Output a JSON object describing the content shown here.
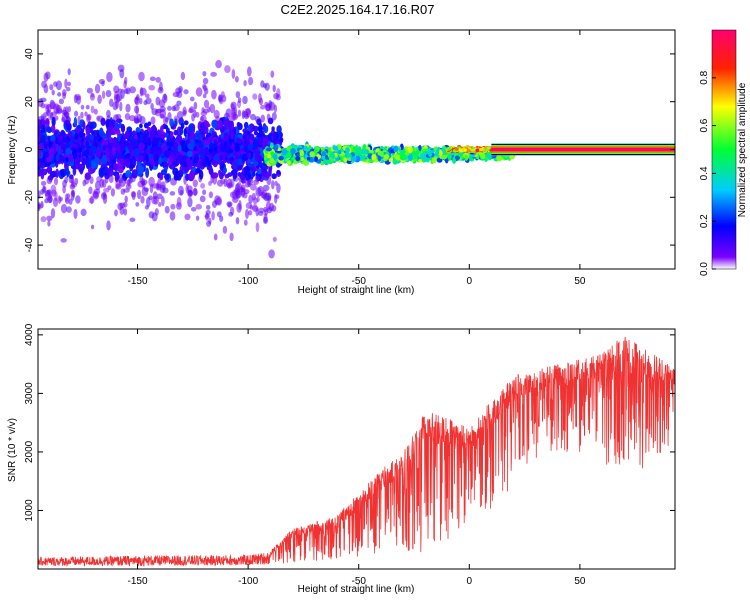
{
  "title": "C2E2.2025.164.17.16.R07",
  "colors": {
    "background": "#ffffff",
    "frame": "#000000",
    "snr_line": "#f03232",
    "spectrum_low": "#7a00ff",
    "spectrum_high": "#ff0060"
  },
  "chart_data": [
    {
      "type": "heatmap",
      "xlabel": "Height of straight line (km)",
      "ylabel": "Frequency (Hz)",
      "xlim": [
        -195,
        93
      ],
      "ylim": [
        -50,
        50
      ],
      "xticks": [
        -150,
        -100,
        -50,
        0,
        50
      ],
      "yticks": [
        -40,
        -20,
        0,
        20,
        40
      ],
      "grid": false,
      "colorbar": {
        "label": "Normalized spectral amplitude",
        "range": [
          0,
          1
        ],
        "ticks": [
          "0.0",
          "0.2",
          "0.4",
          "0.6",
          "0.8"
        ],
        "colormap": "rainbow"
      },
      "ridge": {
        "frequency_hz": 0,
        "strong_from_km": 10,
        "to_km": 93,
        "description_values": [
          {
            "x": -90,
            "y": 0,
            "amplitude": 0.45
          },
          {
            "x": -50,
            "y": -2,
            "amplitude": 0.55
          },
          {
            "x": -20,
            "y": -1,
            "amplitude": 0.6
          },
          {
            "x": 0,
            "y": 1,
            "amplitude": 0.85
          },
          {
            "x": 10,
            "y": 0,
            "amplitude": 1.0
          },
          {
            "x": 90,
            "y": 0,
            "amplitude": 1.0
          }
        ]
      }
    },
    {
      "type": "line",
      "xlabel": "Height of straight line (km)",
      "ylabel": "SNR (10 * v/v)",
      "xlim": [
        -195,
        93
      ],
      "ylim": [
        0,
        4100
      ],
      "xticks": [
        -150,
        -100,
        -50,
        0,
        50
      ],
      "yticks": [
        1000,
        2000,
        3000,
        4000
      ],
      "grid": false,
      "series": [
        {
          "color": "#f03232",
          "envelope": [
            {
              "x": -195,
              "low": 50,
              "high": 200
            },
            {
              "x": -150,
              "low": 50,
              "high": 230
            },
            {
              "x": -100,
              "low": 60,
              "high": 240
            },
            {
              "x": -90,
              "low": 80,
              "high": 300
            },
            {
              "x": -80,
              "low": 100,
              "high": 700
            },
            {
              "x": -60,
              "low": 150,
              "high": 900
            },
            {
              "x": -50,
              "low": 200,
              "high": 1300
            },
            {
              "x": -40,
              "low": 200,
              "high": 1700
            },
            {
              "x": -30,
              "low": 250,
              "high": 2000
            },
            {
              "x": -20,
              "low": 300,
              "high": 2700
            },
            {
              "x": -10,
              "low": 500,
              "high": 2600
            },
            {
              "x": 0,
              "low": 700,
              "high": 2400
            },
            {
              "x": 10,
              "low": 1000,
              "high": 2900
            },
            {
              "x": 20,
              "low": 1400,
              "high": 3300
            },
            {
              "x": 30,
              "low": 1800,
              "high": 3400
            },
            {
              "x": 40,
              "low": 2000,
              "high": 3500
            },
            {
              "x": 50,
              "low": 2000,
              "high": 3600
            },
            {
              "x": 60,
              "low": 1700,
              "high": 3700
            },
            {
              "x": 70,
              "low": 1800,
              "high": 4000
            },
            {
              "x": 80,
              "low": 1700,
              "high": 3800
            },
            {
              "x": 93,
              "low": 2200,
              "high": 3400
            }
          ]
        }
      ]
    }
  ]
}
